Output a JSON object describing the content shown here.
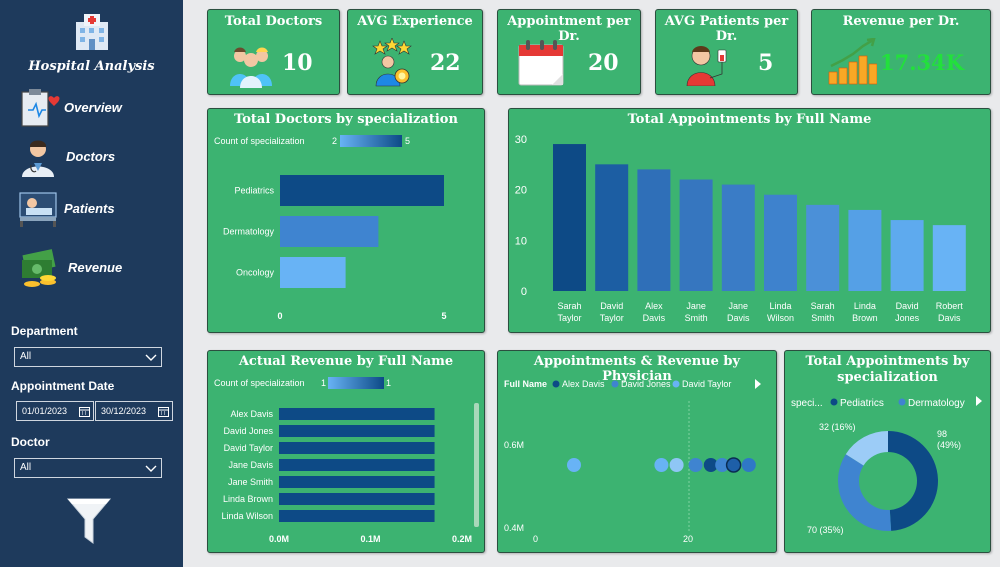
{
  "sidebar": {
    "title": "Hospital Analysis",
    "nav": [
      {
        "label": "Overview",
        "icon": "clipboard-heart-icon"
      },
      {
        "label": "Doctors",
        "icon": "doctor-icon"
      },
      {
        "label": "Patients",
        "icon": "patient-bed-icon"
      },
      {
        "label": "Revenue",
        "icon": "money-coins-icon"
      }
    ],
    "filters": {
      "department_label": "Department",
      "department_value": "All",
      "date_label": "Appointment Date",
      "date_start": "01/01/2023",
      "date_end": "30/12/2023",
      "doctor_label": "Doctor",
      "doctor_value": "All"
    }
  },
  "kpis": [
    {
      "title": "Total Doctors",
      "value": "10",
      "icon": "doctors-group-icon"
    },
    {
      "title": "AVG Experience",
      "value": "22",
      "icon": "award-person-icon"
    },
    {
      "title": "Appointment per Dr.",
      "value": "20",
      "icon": "calendar-icon"
    },
    {
      "title": "AVG Patients per Dr.",
      "value": "5",
      "icon": "patient-iv-icon"
    },
    {
      "title": "Revenue per Dr.",
      "value": "17.34K",
      "icon": "coins-growth-icon",
      "value_color": "#22e03c"
    }
  ],
  "colors": {
    "dark_bar": "#0d4a86",
    "mid_bar": "#3f84d0",
    "light_bar": "#68b3f5",
    "card": "#3cb371"
  },
  "chart_data": [
    {
      "type": "bar",
      "title": "Total Doctors by specialization",
      "legend_label": "Count of specialization",
      "legend_min": "2",
      "legend_max": "5",
      "categories": [
        "Pediatrics",
        "Dermatology",
        "Oncology"
      ],
      "values": [
        5,
        3,
        2
      ],
      "xticks": [
        "0",
        "5"
      ],
      "xlim": [
        0,
        5
      ]
    },
    {
      "type": "bar",
      "title": "Total Appointments by Full Name",
      "categories": [
        "Sarah Taylor",
        "David Taylor",
        "Alex Davis",
        "Jane Smith",
        "Jane Davis",
        "Linda Wilson",
        "Sarah Smith",
        "Linda Brown",
        "David Jones",
        "Robert Davis"
      ],
      "values": [
        29,
        25,
        24,
        22,
        21,
        19,
        17,
        16,
        14,
        13
      ],
      "yticks": [
        "0",
        "10",
        "20",
        "30"
      ],
      "ylim": [
        0,
        30
      ]
    },
    {
      "type": "bar",
      "title": "Actual Revenue by Full Name",
      "legend_label": "Count of specialization",
      "legend_min": "1",
      "legend_max": "1",
      "categories": [
        "Alex Davis",
        "David Jones",
        "David Taylor",
        "Jane Davis",
        "Jane Smith",
        "Linda Brown",
        "Linda Wilson"
      ],
      "values": [
        0.17,
        0.17,
        0.17,
        0.17,
        0.17,
        0.17,
        0.17
      ],
      "xticks": [
        "0.0M",
        "0.1M",
        "0.2M"
      ],
      "xlim": [
        0,
        0.2
      ]
    },
    {
      "type": "scatter",
      "title": "Appointments & Revenue by Physician",
      "legend_title": "Full Name",
      "legend": [
        "Alex Davis",
        "David Jones",
        "David Taylor"
      ],
      "yticks": [
        "0.6M",
        "0.4M"
      ],
      "xticks": [
        "0",
        "20"
      ],
      "xlim": [
        0,
        29
      ],
      "points": [
        {
          "x": 5,
          "y": 0.54
        },
        {
          "x": 16.5,
          "y": 0.54
        },
        {
          "x": 18.5,
          "y": 0.54
        },
        {
          "x": 21,
          "y": 0.54
        },
        {
          "x": 23,
          "y": 0.54
        },
        {
          "x": 24.5,
          "y": 0.54
        },
        {
          "x": 26,
          "y": 0.54
        },
        {
          "x": 28,
          "y": 0.54
        }
      ]
    },
    {
      "type": "pie",
      "title": "Total Appointments by specialization",
      "legend_title": "speci...",
      "legend": [
        "Pediatrics",
        "Dermatology"
      ],
      "slices": [
        {
          "label": "98 (49%)",
          "value": 98
        },
        {
          "label": "70 (35%)",
          "value": 70
        },
        {
          "label": "32 (16%)",
          "value": 32
        }
      ]
    }
  ]
}
